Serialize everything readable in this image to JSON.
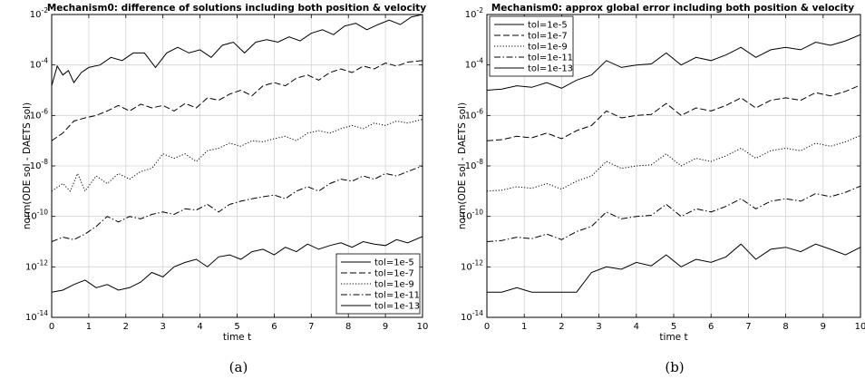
{
  "chart_data": [
    {
      "type": "line",
      "title": "Mechanism0: difference of solutions including both position & velocity",
      "xlabel": "time t",
      "ylabel": "norm(ODE sol - DAETS sol)",
      "caption": "(a)",
      "xlim": [
        0,
        10
      ],
      "ylim": [
        1e-14,
        0.01
      ],
      "yscale": "log",
      "grid": true,
      "legend_position": "bottom-right",
      "xticks": [
        "0",
        "1",
        "2",
        "3",
        "4",
        "5",
        "6",
        "7",
        "8",
        "9",
        "10"
      ],
      "yticks": [
        "10-14",
        "10-12",
        "10-10",
        "10-8",
        "10-6",
        "10-4",
        "10-2"
      ],
      "series": [
        {
          "name": "tol=1e-5",
          "dash": "solid",
          "x": [
            0,
            0.15,
            0.3,
            0.45,
            0.6,
            0.8,
            1.0,
            1.3,
            1.6,
            1.9,
            2.2,
            2.5,
            2.8,
            3.1,
            3.4,
            3.7,
            4.0,
            4.3,
            4.6,
            4.9,
            5.2,
            5.5,
            5.8,
            6.1,
            6.4,
            6.7,
            7.0,
            7.3,
            7.6,
            7.9,
            8.2,
            8.5,
            8.8,
            9.1,
            9.4,
            9.7,
            10.0
          ],
          "y": [
            1.5e-05,
            9e-05,
            4e-05,
            6e-05,
            2e-05,
            5e-05,
            8e-05,
            0.0001,
            0.0002,
            0.00015,
            0.0003,
            0.0003,
            8e-05,
            0.0003,
            0.0005,
            0.0003,
            0.0004,
            0.0002,
            0.0006,
            0.0008,
            0.0003,
            0.0008,
            0.001,
            0.0008,
            0.0013,
            0.0009,
            0.0018,
            0.0025,
            0.0016,
            0.0035,
            0.0045,
            0.0025,
            0.004,
            0.006,
            0.004,
            0.008,
            0.01
          ]
        },
        {
          "name": "tol=1e-7",
          "dash": "dashed",
          "x": [
            0,
            0.3,
            0.6,
            0.9,
            1.2,
            1.5,
            1.8,
            2.1,
            2.4,
            2.7,
            3.0,
            3.3,
            3.6,
            3.9,
            4.2,
            4.5,
            4.8,
            5.1,
            5.4,
            5.7,
            6.0,
            6.3,
            6.6,
            6.9,
            7.2,
            7.5,
            7.8,
            8.1,
            8.4,
            8.7,
            9.0,
            9.3,
            9.6,
            10.0
          ],
          "y": [
            1e-07,
            2e-07,
            6e-07,
            8e-07,
            1e-06,
            1.5e-06,
            2.5e-06,
            1.5e-06,
            2.8e-06,
            2e-06,
            2.5e-06,
            1.5e-06,
            3e-06,
            2e-06,
            5e-06,
            4e-06,
            7e-06,
            1e-05,
            6e-06,
            1.5e-05,
            2e-05,
            1.5e-05,
            3e-05,
            4e-05,
            2.5e-05,
            5e-05,
            7e-05,
            5e-05,
            9e-05,
            7e-05,
            0.00012,
            9e-05,
            0.00013,
            0.00015
          ]
        },
        {
          "name": "tol=1e-9",
          "dash": "dotted",
          "x": [
            0,
            0.3,
            0.5,
            0.7,
            0.9,
            1.2,
            1.5,
            1.8,
            2.1,
            2.4,
            2.7,
            3.0,
            3.3,
            3.6,
            3.9,
            4.2,
            4.5,
            4.8,
            5.1,
            5.4,
            5.7,
            6.0,
            6.3,
            6.6,
            6.9,
            7.2,
            7.5,
            7.8,
            8.1,
            8.4,
            8.7,
            9.0,
            9.3,
            9.6,
            10.0
          ],
          "y": [
            1e-09,
            2e-09,
            1e-09,
            5e-09,
            1e-09,
            4e-09,
            2e-09,
            5e-09,
            3e-09,
            6e-09,
            8e-09,
            3e-08,
            2e-08,
            3e-08,
            1.5e-08,
            4e-08,
            5e-08,
            8e-08,
            6e-08,
            1e-07,
            9e-08,
            1.2e-07,
            1.5e-07,
            1e-07,
            2e-07,
            2.5e-07,
            2e-07,
            3e-07,
            4e-07,
            3e-07,
            5e-07,
            4e-07,
            6e-07,
            5e-07,
            7e-07
          ]
        },
        {
          "name": "tol=1e-11",
          "dash": "dashdot",
          "x": [
            0,
            0.3,
            0.6,
            0.9,
            1.2,
            1.5,
            1.8,
            2.1,
            2.4,
            2.7,
            3.0,
            3.3,
            3.6,
            3.9,
            4.2,
            4.5,
            4.8,
            5.1,
            5.4,
            5.7,
            6.0,
            6.3,
            6.6,
            6.9,
            7.2,
            7.5,
            7.8,
            8.1,
            8.4,
            8.7,
            9.0,
            9.3,
            9.6,
            10.0
          ],
          "y": [
            1e-11,
            1.5e-11,
            1.2e-11,
            2e-11,
            4e-11,
            1e-10,
            6e-11,
            1e-10,
            8e-11,
            1.2e-10,
            1.5e-10,
            1.2e-10,
            2e-10,
            1.8e-10,
            3e-10,
            1.5e-10,
            3e-10,
            4e-10,
            5e-10,
            6e-10,
            7e-10,
            5e-10,
            1e-09,
            1.5e-09,
            1e-09,
            2e-09,
            3e-09,
            2.5e-09,
            4e-09,
            3e-09,
            5e-09,
            4e-09,
            6e-09,
            1e-08
          ]
        },
        {
          "name": "tol=1e-13",
          "dash": "solid",
          "x": [
            0,
            0.3,
            0.6,
            0.9,
            1.2,
            1.5,
            1.8,
            2.1,
            2.4,
            2.7,
            3.0,
            3.3,
            3.6,
            3.9,
            4.2,
            4.5,
            4.8,
            5.1,
            5.4,
            5.7,
            6.0,
            6.3,
            6.6,
            6.9,
            7.2,
            7.5,
            7.8,
            8.1,
            8.4,
            8.7,
            9.0,
            9.3,
            9.6,
            10.0
          ],
          "y": [
            1e-13,
            1.2e-13,
            2e-13,
            3e-13,
            1.5e-13,
            2e-13,
            1.2e-13,
            1.5e-13,
            2.5e-13,
            6e-13,
            4e-13,
            1e-12,
            1.5e-12,
            2e-12,
            1e-12,
            2.5e-12,
            3e-12,
            2e-12,
            4e-12,
            5e-12,
            3e-12,
            6e-12,
            4e-12,
            8e-12,
            5e-12,
            7e-12,
            9e-12,
            6e-12,
            1e-11,
            8e-12,
            7e-12,
            1.2e-11,
            9e-12,
            1.6e-11
          ]
        }
      ]
    },
    {
      "type": "line",
      "title": "Mechanism0: approx global error including both position & velocity",
      "xlabel": "time t",
      "ylabel": "norm(ODE sol - DAETS sol)",
      "caption": "(b)",
      "xlim": [
        0,
        10
      ],
      "ylim": [
        1e-14,
        0.01
      ],
      "yscale": "log",
      "grid": true,
      "legend_position": "top-left",
      "xticks": [
        "0",
        "1",
        "2",
        "3",
        "4",
        "5",
        "6",
        "7",
        "8",
        "9",
        "10"
      ],
      "yticks": [
        "10-14",
        "10-12",
        "10-10",
        "10-8",
        "10-6",
        "10-4",
        "10-2"
      ],
      "series": [
        {
          "name": "tol=1e-5",
          "dash": "solid",
          "x": [
            0,
            0.4,
            0.8,
            1.2,
            1.6,
            2.0,
            2.4,
            2.8,
            3.2,
            3.6,
            4.0,
            4.4,
            4.8,
            5.2,
            5.6,
            6.0,
            6.4,
            6.8,
            7.2,
            7.6,
            8.0,
            8.4,
            8.8,
            9.2,
            9.6,
            10.0
          ],
          "y": [
            1e-05,
            1.1e-05,
            1.5e-05,
            1.3e-05,
            2e-05,
            1.2e-05,
            2.5e-05,
            4e-05,
            0.00015,
            8e-05,
            0.0001,
            0.00011,
            0.0003,
            0.0001,
            0.0002,
            0.00015,
            0.00025,
            0.0005,
            0.0002,
            0.0004,
            0.0005,
            0.0004,
            0.0008,
            0.0006,
            0.0009,
            0.0016
          ]
        },
        {
          "name": "tol=1e-7",
          "dash": "dashed",
          "x": [
            0,
            0.4,
            0.8,
            1.2,
            1.6,
            2.0,
            2.4,
            2.8,
            3.2,
            3.6,
            4.0,
            4.4,
            4.8,
            5.2,
            5.6,
            6.0,
            6.4,
            6.8,
            7.2,
            7.6,
            8.0,
            8.4,
            8.8,
            9.2,
            9.6,
            10.0
          ],
          "y": [
            1e-07,
            1.1e-07,
            1.5e-07,
            1.3e-07,
            2e-07,
            1.2e-07,
            2.5e-07,
            4e-07,
            1.5e-06,
            8e-07,
            1e-06,
            1.1e-06,
            3e-06,
            1e-06,
            2e-06,
            1.5e-06,
            2.5e-06,
            5e-06,
            2e-06,
            4e-06,
            5e-06,
            4e-06,
            8e-06,
            6e-06,
            9e-06,
            1.6e-05
          ]
        },
        {
          "name": "tol=1e-9",
          "dash": "dotted",
          "x": [
            0,
            0.4,
            0.8,
            1.2,
            1.6,
            2.0,
            2.4,
            2.8,
            3.2,
            3.6,
            4.0,
            4.4,
            4.8,
            5.2,
            5.6,
            6.0,
            6.4,
            6.8,
            7.2,
            7.6,
            8.0,
            8.4,
            8.8,
            9.2,
            9.6,
            10.0
          ],
          "y": [
            1e-09,
            1.1e-09,
            1.5e-09,
            1.3e-09,
            2e-09,
            1.2e-09,
            2.5e-09,
            4e-09,
            1.5e-08,
            8e-09,
            1e-08,
            1.1e-08,
            3e-08,
            1e-08,
            2e-08,
            1.5e-08,
            2.5e-08,
            5e-08,
            2e-08,
            4e-08,
            5e-08,
            4e-08,
            8e-08,
            6e-08,
            9e-08,
            1.6e-07
          ]
        },
        {
          "name": "tol=1e-11",
          "dash": "dashdot",
          "x": [
            0,
            0.4,
            0.8,
            1.2,
            1.6,
            2.0,
            2.4,
            2.8,
            3.2,
            3.6,
            4.0,
            4.4,
            4.8,
            5.2,
            5.6,
            6.0,
            6.4,
            6.8,
            7.2,
            7.6,
            8.0,
            8.4,
            8.8,
            9.2,
            9.6,
            10.0
          ],
          "y": [
            1e-11,
            1.1e-11,
            1.5e-11,
            1.3e-11,
            2e-11,
            1.2e-11,
            2.5e-11,
            4e-11,
            1.5e-10,
            8e-11,
            1e-10,
            1.1e-10,
            3e-10,
            1e-10,
            2e-10,
            1.5e-10,
            2.5e-10,
            5e-10,
            2e-10,
            4e-10,
            5e-10,
            4e-10,
            8e-10,
            6e-10,
            9e-10,
            1.6e-09
          ]
        },
        {
          "name": "tol=1e-13",
          "dash": "solid",
          "x": [
            0,
            0.4,
            0.8,
            1.2,
            1.6,
            2.0,
            2.4,
            2.8,
            3.2,
            3.6,
            4.0,
            4.4,
            4.8,
            5.2,
            5.6,
            6.0,
            6.4,
            6.8,
            7.2,
            7.6,
            8.0,
            8.4,
            8.8,
            9.2,
            9.6,
            10.0
          ],
          "y": [
            1e-13,
            1e-13,
            1.5e-13,
            1e-13,
            1e-13,
            1e-13,
            1e-13,
            6e-13,
            1e-12,
            8e-13,
            1.5e-12,
            1.1e-12,
            3e-12,
            1e-12,
            2e-12,
            1.5e-12,
            2.5e-12,
            8e-12,
            2e-12,
            5e-12,
            6e-12,
            4e-12,
            8e-12,
            5e-12,
            3e-12,
            6e-12
          ]
        }
      ]
    }
  ]
}
